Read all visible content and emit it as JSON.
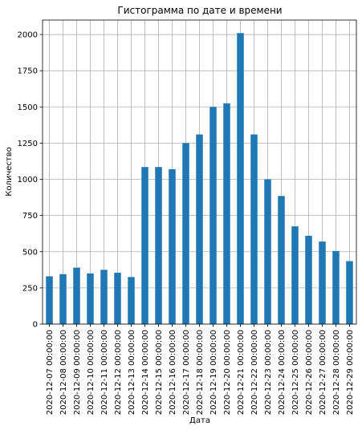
{
  "chart_data": {
    "type": "bar",
    "title": "Гистограмма по дате и времени",
    "xlabel": "Дата",
    "ylabel": "Количество",
    "ylim": [
      0,
      2100
    ],
    "yticks": [
      0,
      250,
      500,
      750,
      1000,
      1250,
      1500,
      1750,
      2000
    ],
    "grid": true,
    "bar_color": "#1f77b4",
    "categories": [
      "2020-12-07 00:00:00",
      "2020-12-08 00:00:00",
      "2020-12-09 00:00:00",
      "2020-12-10 00:00:00",
      "2020-12-11 00:00:00",
      "2020-12-12 00:00:00",
      "2020-12-13 00:00:00",
      "2020-12-14 00:00:00",
      "2020-12-15 00:00:00",
      "2020-12-16 00:00:00",
      "2020-12-17 00:00:00",
      "2020-12-18 00:00:00",
      "2020-12-19 00:00:00",
      "2020-12-20 00:00:00",
      "2020-12-21 00:00:00",
      "2020-12-22 00:00:00",
      "2020-12-23 00:00:00",
      "2020-12-24 00:00:00",
      "2020-12-25 00:00:00",
      "2020-12-26 00:00:00",
      "2020-12-27 00:00:00",
      "2020-12-28 00:00:00",
      "2020-12-29 00:00:00"
    ],
    "values": [
      330,
      345,
      390,
      350,
      375,
      355,
      325,
      1085,
      1085,
      1070,
      1250,
      1310,
      1500,
      1525,
      2010,
      1310,
      1000,
      885,
      675,
      610,
      570,
      505,
      435
    ]
  }
}
